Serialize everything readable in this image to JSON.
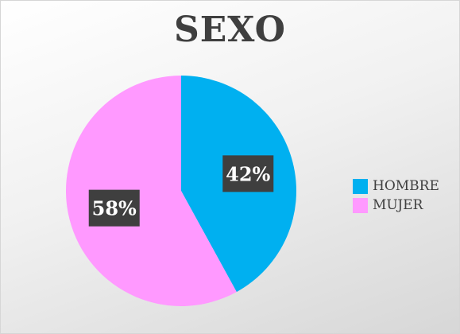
{
  "chart_data": {
    "type": "pie",
    "title": "SEXO",
    "categories": [
      "HOMBRE",
      "MUJER"
    ],
    "values": [
      42,
      58
    ],
    "data_labels": [
      "42%",
      "58%"
    ],
    "colors": [
      "#00b0f0",
      "#ff99ff"
    ],
    "legend_position": "right"
  },
  "legend": {
    "items": [
      {
        "label": "HOMBRE",
        "color": "#00b0f0"
      },
      {
        "label": "MUJER",
        "color": "#ff99ff"
      }
    ]
  },
  "colors": {
    "label_box": "#3f3f3f",
    "label_text": "#ffffff",
    "title_text": "#3f3f3f"
  }
}
